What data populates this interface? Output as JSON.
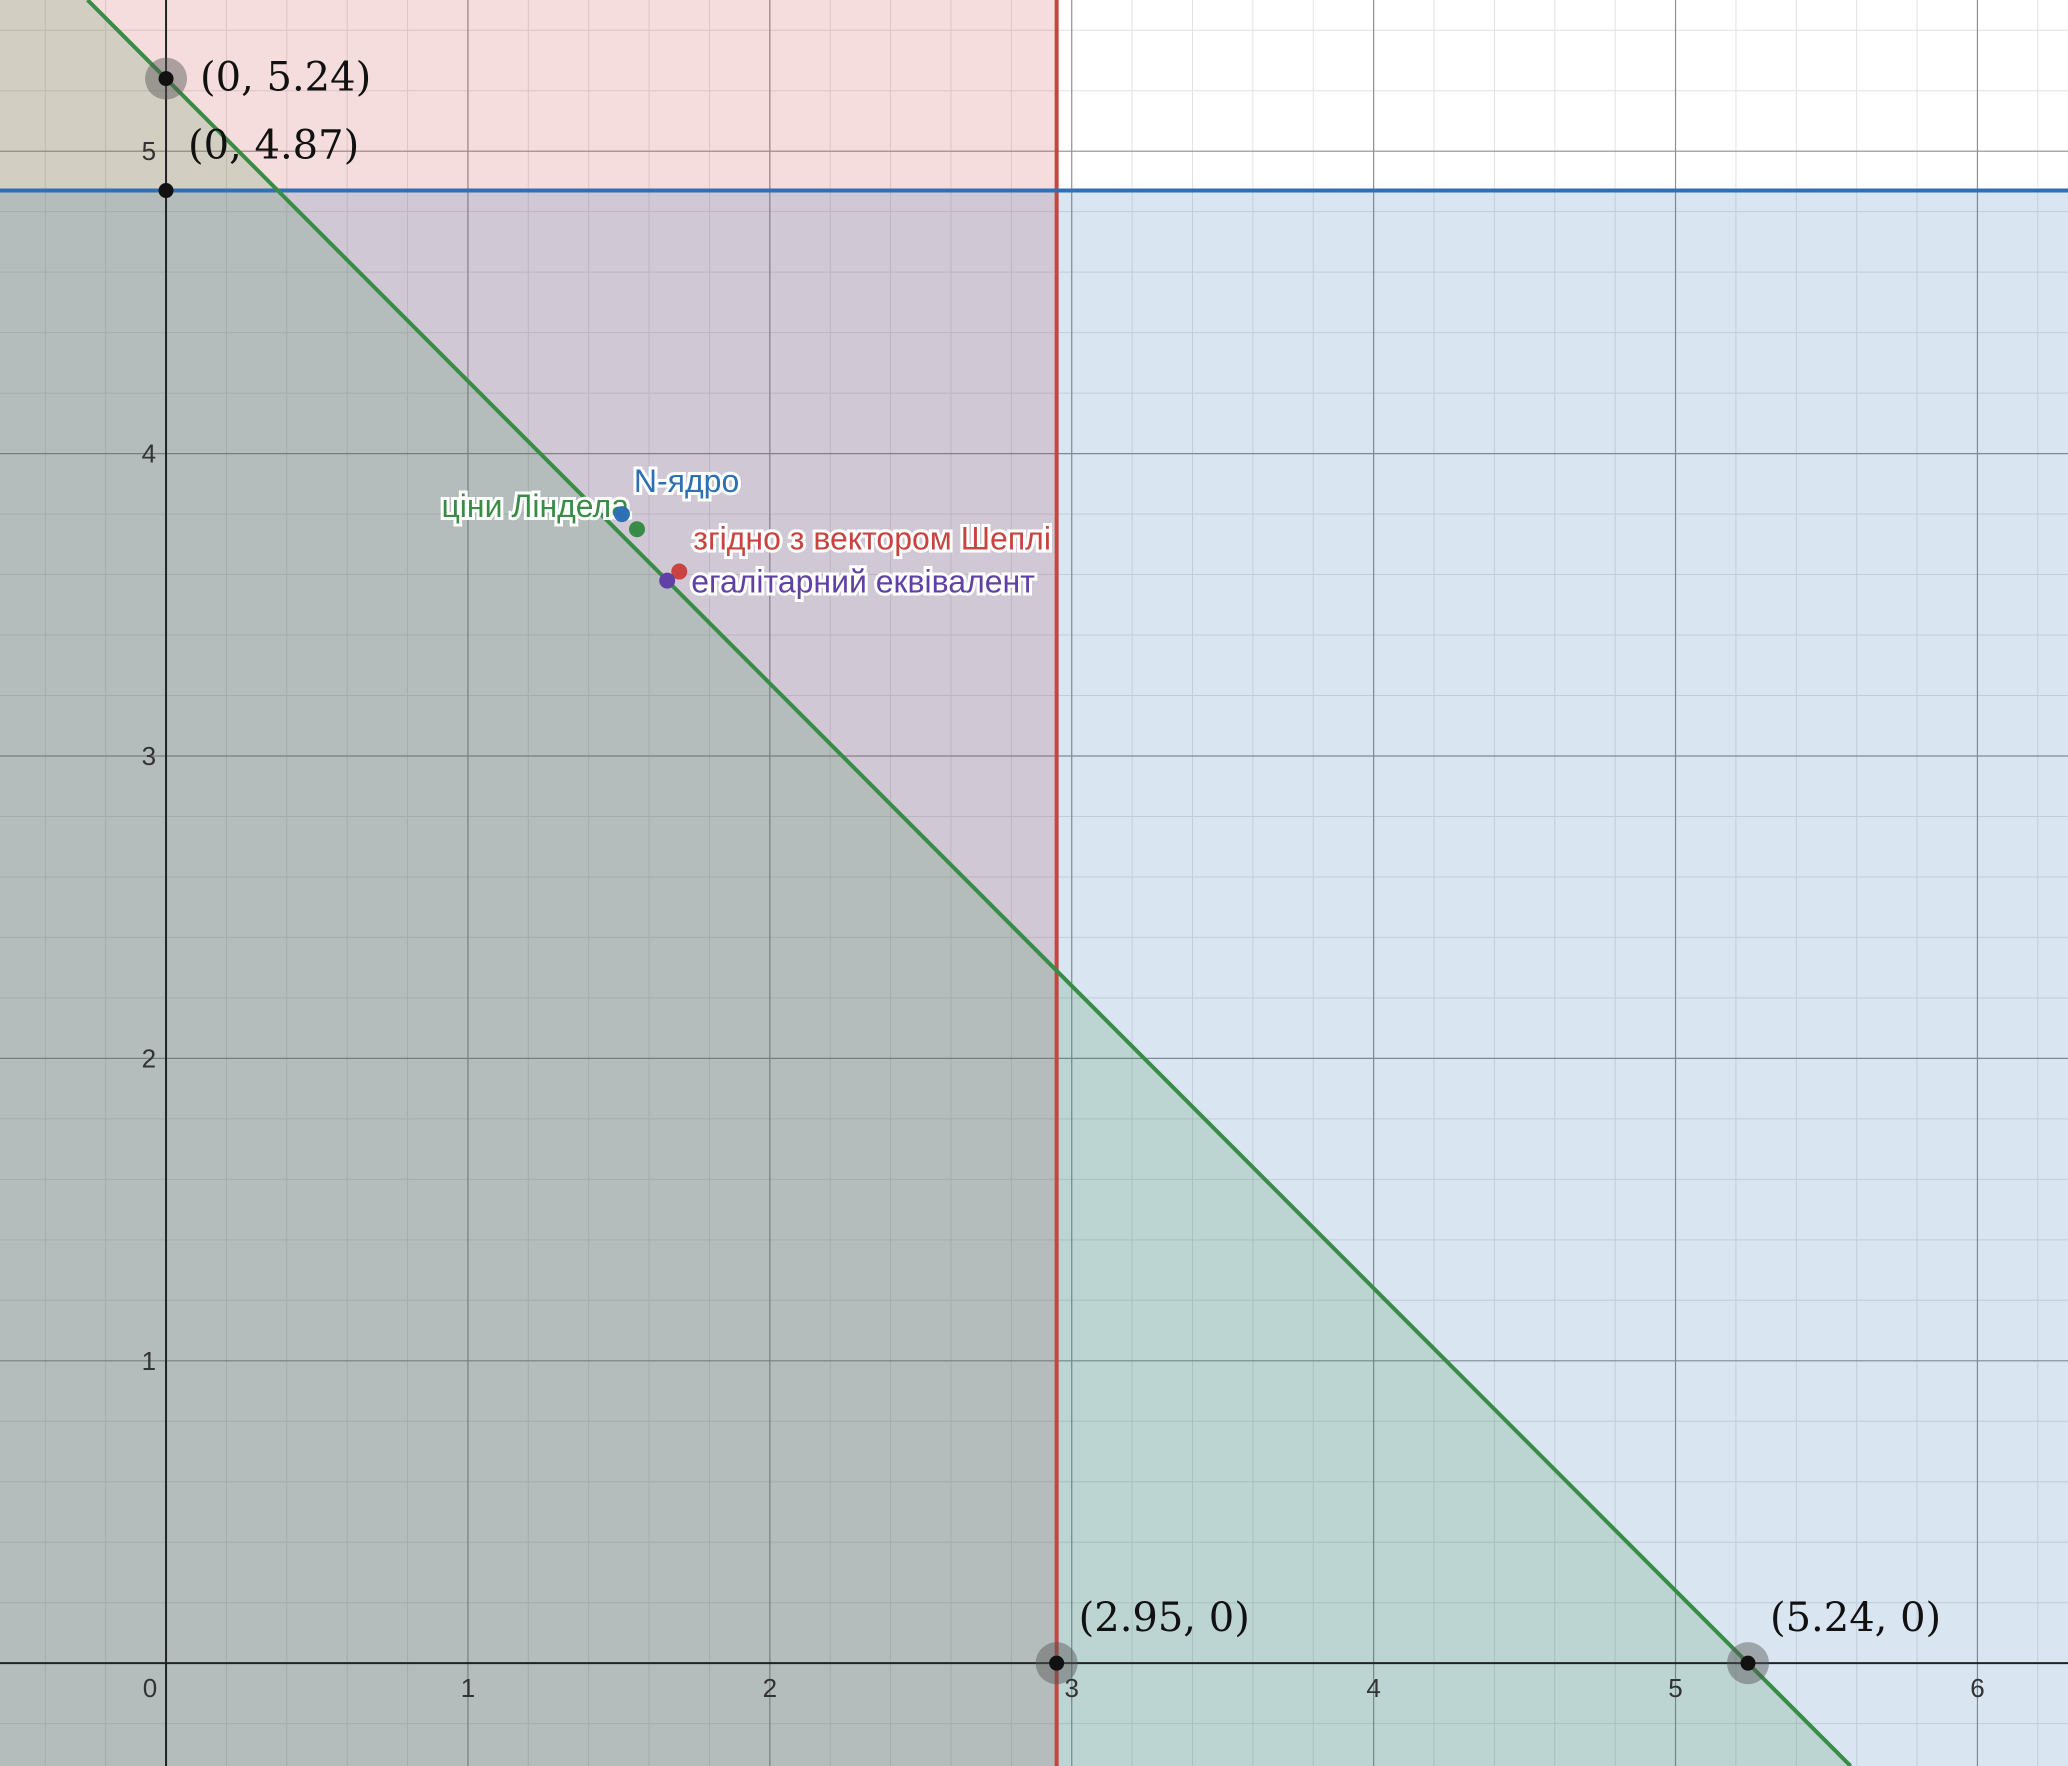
{
  "chart_data": {
    "type": "scatter",
    "title": "",
    "xlabel": "",
    "ylabel": "",
    "xlim": [
      -0.55,
      6.3
    ],
    "ylim": [
      -0.34,
      5.5
    ],
    "grid": true,
    "x_ticks": [
      "0",
      "1",
      "2",
      "3",
      "4",
      "5",
      "6"
    ],
    "y_ticks": [
      "1",
      "2",
      "3",
      "4",
      "5"
    ],
    "regions": [
      {
        "name": "x ≤ 2.95",
        "color": "#c74440",
        "bound": "x <= 2.95"
      },
      {
        "name": "y ≤ 4.87",
        "color": "#2d70b3",
        "bound": "y <= 4.87"
      },
      {
        "name": "x + y ≤ 5.24",
        "color": "#388c46",
        "bound": "x + y <= 5.24"
      }
    ],
    "lines": [
      {
        "color": "#c74440",
        "kind": "vertical",
        "x": 2.95
      },
      {
        "color": "#2d70b3",
        "kind": "horizontal",
        "y": 4.87
      },
      {
        "color": "#388c46",
        "kind": "sum",
        "c": 5.24
      }
    ],
    "marked_points": [
      {
        "label": "(0, 5.24)",
        "x": 0,
        "y": 5.24,
        "halo": true
      },
      {
        "label": "(0, 4.87)",
        "x": 0,
        "y": 4.87,
        "halo": false
      },
      {
        "label": "(2.95, 0)",
        "x": 2.95,
        "y": 0,
        "halo": true
      },
      {
        "label": "(5.24, 0)",
        "x": 5.24,
        "y": 0,
        "halo": true
      }
    ],
    "series": [
      {
        "name": "ціни Ліндела",
        "x": 1.56,
        "y": 3.75,
        "color": "#388c46"
      },
      {
        "name": "N-ядро",
        "x": 1.51,
        "y": 3.8,
        "color": "#2d70b3"
      },
      {
        "name": "згідно з вектором Шеплі",
        "x": 1.7,
        "y": 3.61,
        "color": "#c74440"
      },
      {
        "name": "егалітарний еквівалент",
        "x": 1.66,
        "y": 3.58,
        "color": "#6042a6"
      }
    ]
  }
}
